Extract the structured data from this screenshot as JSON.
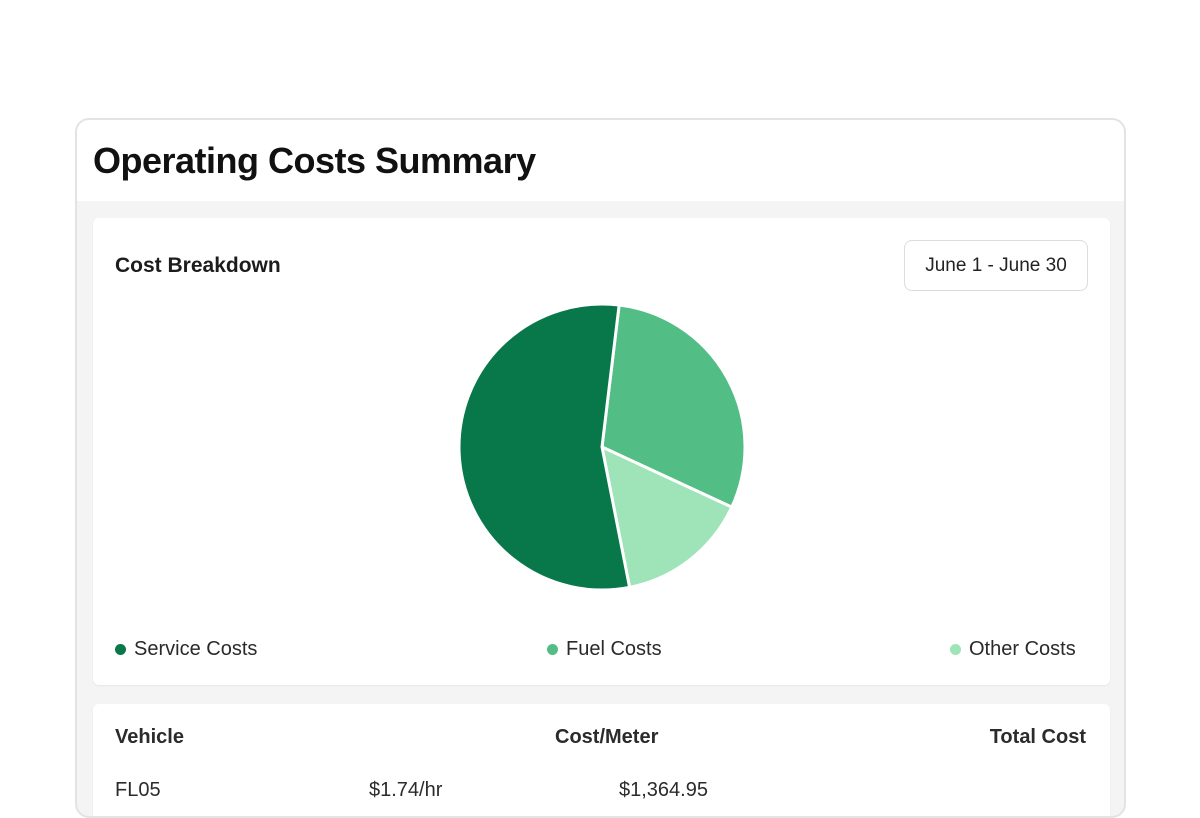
{
  "header": {
    "title": "Operating Costs Summary"
  },
  "breakdown": {
    "title": "Cost Breakdown",
    "date_range": "June 1 - June 30",
    "legend": [
      {
        "label": "Service Costs",
        "color": "#08784a"
      },
      {
        "label": "Fuel Costs",
        "color": "#52bd84"
      },
      {
        "label": "Other Costs",
        "color": "#9fe3b8"
      }
    ]
  },
  "chart_data": {
    "type": "pie",
    "categories": [
      "Service Costs",
      "Fuel Costs",
      "Other Costs"
    ],
    "values": [
      55,
      30,
      15
    ],
    "colors": [
      "#08784a",
      "#52bd84",
      "#9fe3b8"
    ]
  },
  "table": {
    "columns": [
      "Vehicle",
      "Cost/Meter",
      "Total Cost"
    ],
    "rows": [
      {
        "vehicle": "FL05",
        "cost_meter": "$1.74/hr",
        "total": "$1,364.95"
      }
    ]
  }
}
